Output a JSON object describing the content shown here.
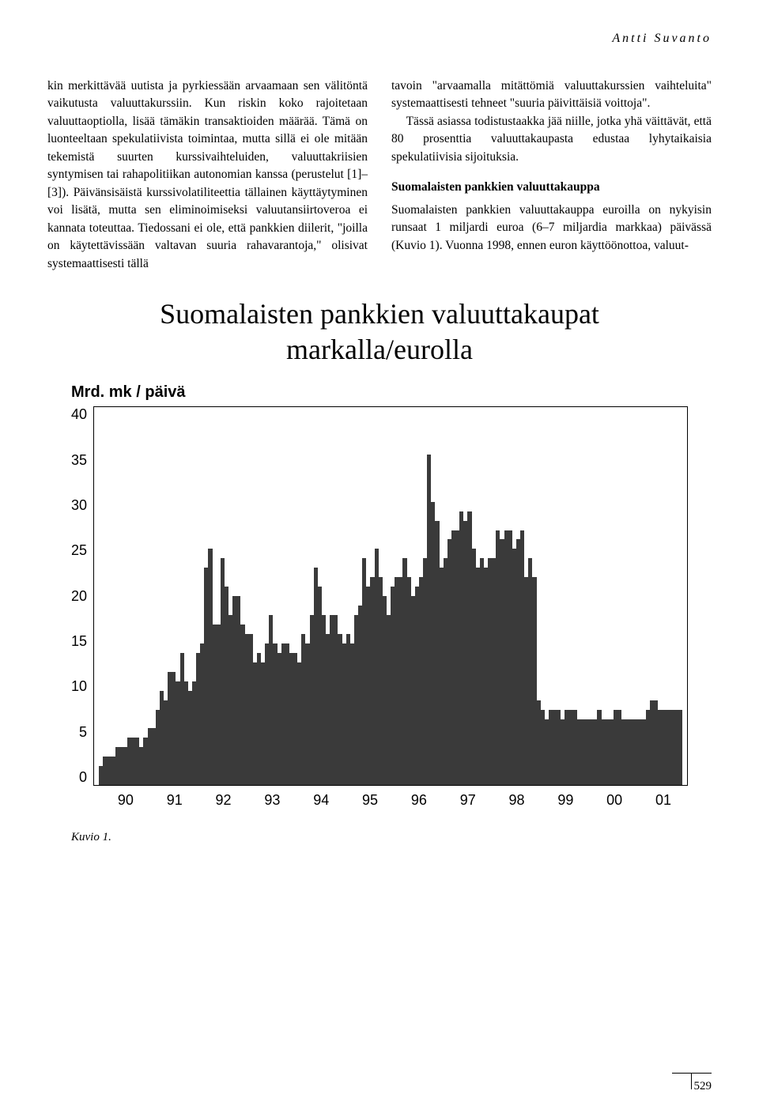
{
  "author": "Antti Suvanto",
  "left_column": "kin merkittävää uutista ja pyrkiessään arvaamaan sen välitöntä vaikutusta valuuttakurssiin. Kun riskin koko rajoitetaan valuuttaoptiolla, lisää tämäkin transaktioiden määrää. Tämä on luonteeltaan spekulatiivista toimintaa, mutta sillä ei ole mitään tekemistä suurten kurssivaihteluiden, valuuttakriisien syntymisen tai rahapolitiikan autonomian kanssa (perustelut [1]–[3]). Päivänsisäistä kurssivolatiliteettia tällainen käyttäytyminen voi lisätä, mutta sen eliminoimiseksi valuutansiirtoveroa ei kannata toteuttaa. Tiedossani ei ole, että pankkien diilerit, \"joilla on käytettävissään valtavan suuria rahavarantoja,\" olisivat systemaattisesti tällä",
  "right_top": "tavoin \"arvaamalla mitättömiä valuuttakurssien vaihteluita\" systemaattisesti tehneet \"suuria päivittäisiä voittoja\".",
  "right_p2": "Tässä asiassa todistustaakka jää niille, jotka yhä väittävät, että 80 prosenttia valuuttakaupasta edustaa lyhytaikaisia spekulatiivisia sijoituksia.",
  "right_heading": "Suomalaisten pankkien valuuttakauppa",
  "right_p3": "Suomalaisten pankkien valuuttakauppa euroilla on nykyisin runsaat 1 miljardi euroa (6–7 miljardia markkaa) päivässä (Kuvio 1). Vuonna 1998, ennen euron käyttöönottoa, valuut-",
  "chart": {
    "title_line1": "Suomalaisten pankkien valuuttakaupat",
    "title_line2": "markalla/eurolla",
    "y_label": "Mrd. mk / päivä",
    "y_ticks": [
      "40",
      "35",
      "30",
      "25",
      "20",
      "15",
      "10",
      "5",
      "0"
    ],
    "x_ticks": [
      "90",
      "91",
      "92",
      "93",
      "94",
      "95",
      "96",
      "97",
      "98",
      "99",
      "00",
      "01"
    ],
    "ylim_max": 40,
    "bar_color": "#3a3a3a",
    "values": [
      2,
      3,
      3,
      3,
      4,
      4,
      4,
      5,
      5,
      5,
      4,
      5,
      6,
      6,
      8,
      10,
      9,
      12,
      12,
      11,
      14,
      11,
      10,
      11,
      14,
      15,
      23,
      25,
      17,
      17,
      24,
      21,
      18,
      20,
      20,
      17,
      16,
      16,
      13,
      14,
      13,
      15,
      18,
      15,
      14,
      15,
      15,
      14,
      14,
      13,
      16,
      15,
      18,
      23,
      21,
      18,
      16,
      18,
      18,
      16,
      15,
      16,
      15,
      18,
      19,
      24,
      21,
      22,
      25,
      22,
      20,
      18,
      21,
      22,
      22,
      24,
      22,
      20,
      21,
      22,
      24,
      35,
      30,
      28,
      23,
      24,
      26,
      27,
      27,
      29,
      28,
      29,
      25,
      23,
      24,
      23,
      24,
      24,
      27,
      26,
      27,
      27,
      25,
      26,
      27,
      22,
      24,
      22,
      9,
      8,
      7,
      8,
      8,
      8,
      7,
      8,
      8,
      8,
      7,
      7,
      7,
      7,
      7,
      8,
      7,
      7,
      7,
      8,
      8,
      7,
      7,
      7,
      7,
      7,
      7,
      8,
      9,
      9,
      8,
      8,
      8,
      8,
      8,
      8
    ]
  },
  "caption": "Kuvio 1.",
  "page_number": "529"
}
